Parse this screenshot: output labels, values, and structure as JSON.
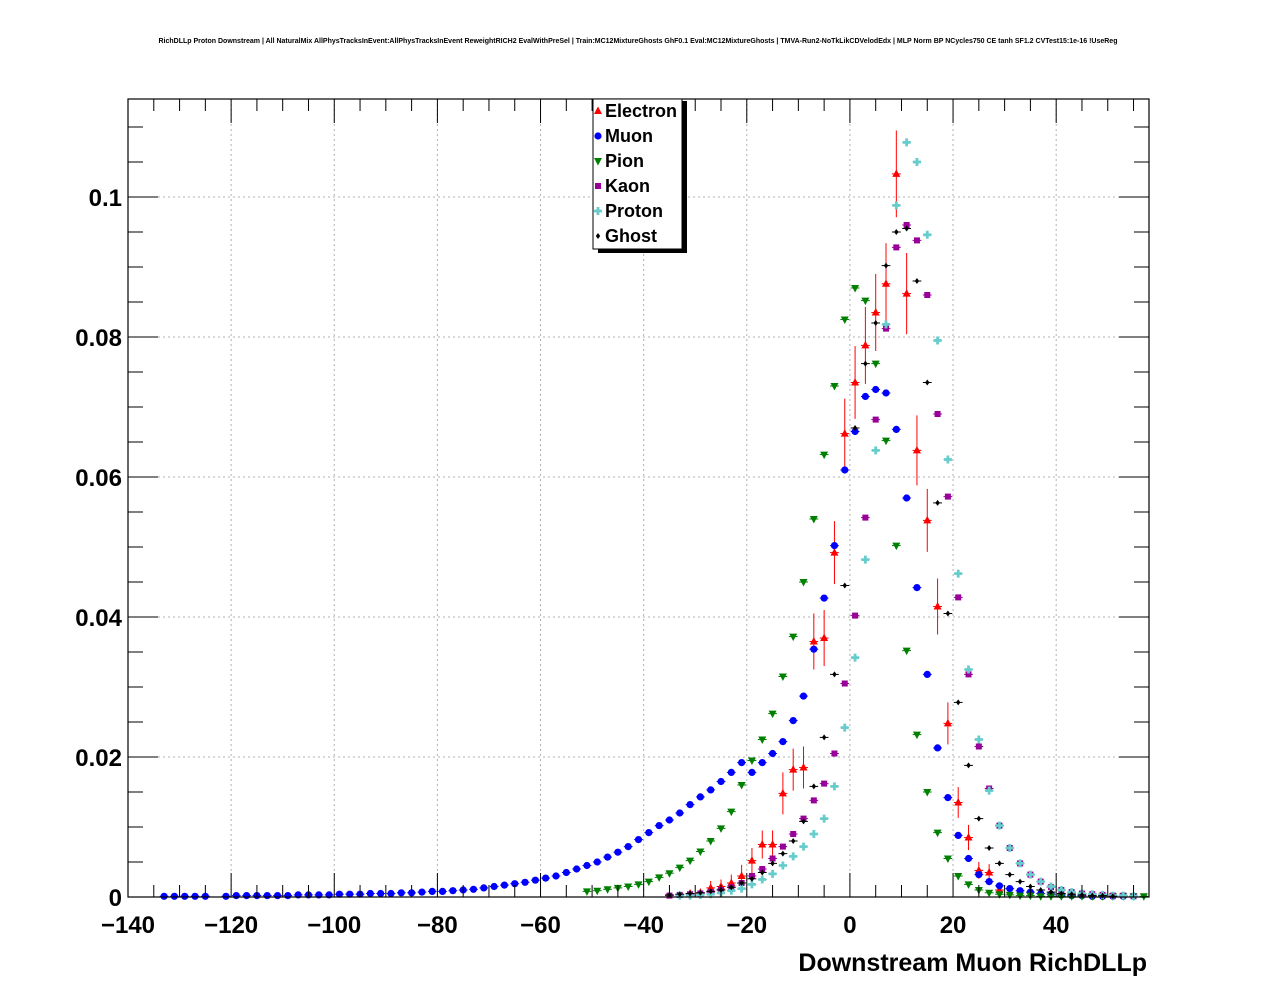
{
  "chart_data": {
    "type": "scatter",
    "title": "RichDLLp Proton Downstream | All NaturalMix AllPhysTracksInEvent:AllPhysTracksInEvent ReweightRICH2 EvalWithPreSel | Train:MC12MixtureGhosts GhF0.1 Eval:MC12MixtureGhosts | TMVA-Run2-NoTkLikCDVelodEdx | MLP Norm BP NCycles750 CE tanh SF1.2 CVTest15:1e-16 !UseReg",
    "xlabel": "Downstream Muon RichDLLp",
    "ylabel": "",
    "xlim": [
      -140,
      58
    ],
    "ylim": [
      0,
      0.114
    ],
    "x_ticks": [
      -140,
      -120,
      -100,
      -80,
      -60,
      -40,
      -20,
      0,
      20,
      40
    ],
    "x_tick_labels": [
      "−140",
      "−120",
      "−100",
      "−80",
      "−60",
      "−40",
      "−20",
      "0",
      "20",
      "40"
    ],
    "y_ticks": [
      0,
      0.02,
      0.04,
      0.06,
      0.08,
      0.1
    ],
    "y_tick_labels": [
      "0",
      "0.02",
      "0.04",
      "0.06",
      "0.08",
      "0.1"
    ],
    "grid": true,
    "legend_position": "top-center",
    "series": [
      {
        "name": "Electron",
        "marker": "triangle-up",
        "color": "#ff0000",
        "x": [
          -31,
          -29,
          -27,
          -25,
          -23,
          -21,
          -19,
          -17,
          -15,
          -13,
          -11,
          -9,
          -7,
          -5,
          -3,
          -1,
          1,
          3,
          5,
          7,
          9,
          11,
          13,
          15,
          17,
          19,
          21,
          23,
          25,
          27,
          29
        ],
        "y": [
          0.0005,
          0.0006,
          0.0013,
          0.0015,
          0.002,
          0.003,
          0.0052,
          0.0075,
          0.0075,
          0.0148,
          0.0182,
          0.0185,
          0.0365,
          0.037,
          0.0492,
          0.0662,
          0.0735,
          0.0788,
          0.0835,
          0.0876,
          0.1033,
          0.0862,
          0.0638,
          0.0538,
          0.0415,
          0.0248,
          0.0135,
          0.0085,
          0.0038,
          0.0035,
          0.001
        ],
        "err": [
          0.0005,
          0.0006,
          0.001,
          0.001,
          0.0012,
          0.0016,
          0.0018,
          0.002,
          0.002,
          0.003,
          0.003,
          0.003,
          0.004,
          0.004,
          0.0045,
          0.005,
          0.0052,
          0.0055,
          0.0055,
          0.0058,
          0.0062,
          0.0058,
          0.005,
          0.0045,
          0.004,
          0.003,
          0.0022,
          0.0018,
          0.0012,
          0.0012,
          0.0006
        ]
      },
      {
        "name": "Muon",
        "marker": "circle",
        "color": "#0000ff",
        "x": [
          -133,
          -131,
          -129,
          -127,
          -125,
          -121,
          -119,
          -117,
          -115,
          -113,
          -111,
          -109,
          -107,
          -105,
          -103,
          -101,
          -99,
          -97,
          -95,
          -93,
          -91,
          -89,
          -87,
          -85,
          -83,
          -81,
          -79,
          -77,
          -75,
          -73,
          -71,
          -69,
          -67,
          -65,
          -63,
          -61,
          -59,
          -57,
          -55,
          -53,
          -51,
          -49,
          -47,
          -45,
          -43,
          -41,
          -39,
          -37,
          -35,
          -33,
          -31,
          -29,
          -27,
          -25,
          -23,
          -21,
          -19,
          -17,
          -15,
          -13,
          -11,
          -9,
          -7,
          -5,
          -3,
          -1,
          1,
          3,
          5,
          7,
          9,
          11,
          13,
          15,
          17,
          19,
          21,
          23,
          25,
          27,
          29,
          31,
          33,
          35,
          37,
          39,
          41,
          43,
          45,
          47,
          49,
          51,
          53
        ],
        "y": [
          0.0001,
          0.0001,
          0.0001,
          0.0001,
          0.0001,
          0.0001,
          0.0002,
          0.0002,
          0.0002,
          0.0002,
          0.0002,
          0.0002,
          0.0003,
          0.0003,
          0.0003,
          0.0003,
          0.0004,
          0.0004,
          0.0004,
          0.0005,
          0.0005,
          0.0005,
          0.0006,
          0.0006,
          0.0007,
          0.0008,
          0.0008,
          0.0009,
          0.001,
          0.0011,
          0.0013,
          0.0015,
          0.0017,
          0.0019,
          0.0021,
          0.0024,
          0.0027,
          0.003,
          0.0035,
          0.004,
          0.0045,
          0.005,
          0.0057,
          0.0064,
          0.0072,
          0.0082,
          0.0092,
          0.0102,
          0.011,
          0.012,
          0.0132,
          0.0143,
          0.0153,
          0.0165,
          0.0178,
          0.0192,
          0.0178,
          0.0192,
          0.0205,
          0.0222,
          0.0252,
          0.0287,
          0.0354,
          0.0427,
          0.0502,
          0.061,
          0.0665,
          0.0715,
          0.0725,
          0.072,
          0.0668,
          0.057,
          0.0442,
          0.0318,
          0.0213,
          0.0142,
          0.0088,
          0.0055,
          0.0032,
          0.0022,
          0.0016,
          0.0012,
          0.0009,
          0.0007,
          0.0005,
          0.0004,
          0.0003,
          0.0002,
          0.0002,
          0.0001,
          0.0001,
          0.0001,
          0.0001
        ],
        "err": []
      },
      {
        "name": "Pion",
        "marker": "triangle-down",
        "color": "#008000",
        "x": [
          -51,
          -49,
          -47,
          -45,
          -43,
          -41,
          -39,
          -37,
          -35,
          -33,
          -31,
          -29,
          -27,
          -25,
          -23,
          -21,
          -19,
          -17,
          -15,
          -13,
          -11,
          -9,
          -7,
          -5,
          -3,
          -1,
          1,
          3,
          5,
          7,
          9,
          11,
          13,
          15,
          17,
          19,
          21,
          23,
          25,
          27,
          29,
          31,
          33,
          35,
          37,
          39,
          41,
          43,
          45,
          47,
          49,
          51,
          53,
          55,
          57
        ],
        "y": [
          0.0008,
          0.0009,
          0.0011,
          0.0013,
          0.0015,
          0.0018,
          0.0022,
          0.0028,
          0.0034,
          0.0042,
          0.0052,
          0.0065,
          0.008,
          0.0098,
          0.0122,
          0.016,
          0.0195,
          0.0225,
          0.0262,
          0.0315,
          0.0372,
          0.045,
          0.054,
          0.0632,
          0.073,
          0.0825,
          0.087,
          0.0852,
          0.0762,
          0.0652,
          0.0502,
          0.0352,
          0.0232,
          0.015,
          0.0092,
          0.0055,
          0.003,
          0.0018,
          0.001,
          0.0006,
          0.0004,
          0.0003,
          0.0002,
          0.0002,
          0.0001,
          0.0001,
          0.0001,
          0.0001,
          0.0001,
          0.0001,
          0.0001,
          0.0001,
          0.0001,
          0.0001,
          0.0001
        ],
        "err": []
      },
      {
        "name": "Kaon",
        "marker": "square",
        "color": "#990099",
        "x": [
          -35,
          -33,
          -31,
          -29,
          -27,
          -25,
          -23,
          -21,
          -19,
          -17,
          -15,
          -13,
          -11,
          -9,
          -7,
          -5,
          -3,
          -1,
          1,
          3,
          5,
          7,
          9,
          11,
          13,
          15,
          17,
          19,
          21,
          23,
          25,
          27,
          29,
          31,
          33,
          35,
          37,
          39,
          41,
          43,
          45,
          47,
          49,
          51,
          53,
          55
        ],
        "y": [
          0.0002,
          0.0003,
          0.0004,
          0.0005,
          0.0007,
          0.001,
          0.0014,
          0.002,
          0.003,
          0.004,
          0.0055,
          0.0072,
          0.009,
          0.0112,
          0.0138,
          0.0162,
          0.0205,
          0.0305,
          0.0402,
          0.0542,
          0.0682,
          0.0812,
          0.0928,
          0.096,
          0.0938,
          0.086,
          0.069,
          0.0572,
          0.0428,
          0.0318,
          0.0215,
          0.0155,
          0.0102,
          0.007,
          0.0048,
          0.0032,
          0.0022,
          0.0014,
          0.001,
          0.0007,
          0.0005,
          0.0004,
          0.0003,
          0.0002,
          0.0002,
          0.0001
        ],
        "err": []
      },
      {
        "name": "Proton",
        "marker": "cross",
        "color": "#66cccc",
        "x": [
          -33,
          -31,
          -29,
          -27,
          -25,
          -23,
          -21,
          -19,
          -17,
          -15,
          -13,
          -11,
          -9,
          -7,
          -5,
          -3,
          -1,
          1,
          3,
          5,
          7,
          9,
          11,
          13,
          15,
          17,
          19,
          21,
          23,
          25,
          27,
          29,
          31,
          33,
          35,
          37,
          39,
          41,
          43,
          45,
          47,
          49,
          51,
          53,
          55
        ],
        "y": [
          0.0002,
          0.0002,
          0.0003,
          0.0004,
          0.0006,
          0.0009,
          0.0012,
          0.0018,
          0.0025,
          0.0033,
          0.0045,
          0.0058,
          0.0072,
          0.009,
          0.0112,
          0.0158,
          0.0242,
          0.0342,
          0.0482,
          0.0638,
          0.0818,
          0.0988,
          0.1078,
          0.105,
          0.0946,
          0.0795,
          0.0625,
          0.0462,
          0.0325,
          0.0225,
          0.0152,
          0.0102,
          0.007,
          0.0048,
          0.0032,
          0.0022,
          0.0015,
          0.001,
          0.0007,
          0.0005,
          0.0004,
          0.0003,
          0.0002,
          0.0002,
          0.0001
        ],
        "err": []
      },
      {
        "name": "Ghost",
        "marker": "diamond",
        "color": "#000000",
        "x": [
          -35,
          -33,
          -31,
          -29,
          -27,
          -25,
          -23,
          -21,
          -19,
          -17,
          -15,
          -13,
          -11,
          -9,
          -7,
          -5,
          -3,
          -1,
          1,
          3,
          5,
          7,
          9,
          11,
          13,
          15,
          17,
          19,
          21,
          23,
          25,
          27,
          29,
          31,
          33,
          35,
          37,
          39,
          41,
          43,
          45,
          47,
          49,
          51
        ],
        "y": [
          0.0003,
          0.0004,
          0.0005,
          0.0006,
          0.0008,
          0.001,
          0.0014,
          0.002,
          0.0026,
          0.0035,
          0.0048,
          0.0062,
          0.008,
          0.0108,
          0.0158,
          0.0228,
          0.0318,
          0.0445,
          0.067,
          0.0762,
          0.082,
          0.0902,
          0.095,
          0.0955,
          0.088,
          0.0735,
          0.0563,
          0.0405,
          0.0278,
          0.0188,
          0.0112,
          0.007,
          0.0048,
          0.0032,
          0.0022,
          0.0015,
          0.001,
          0.0007,
          0.0005,
          0.0004,
          0.0003,
          0.0002,
          0.0002,
          0.0001
        ],
        "err": []
      }
    ]
  }
}
